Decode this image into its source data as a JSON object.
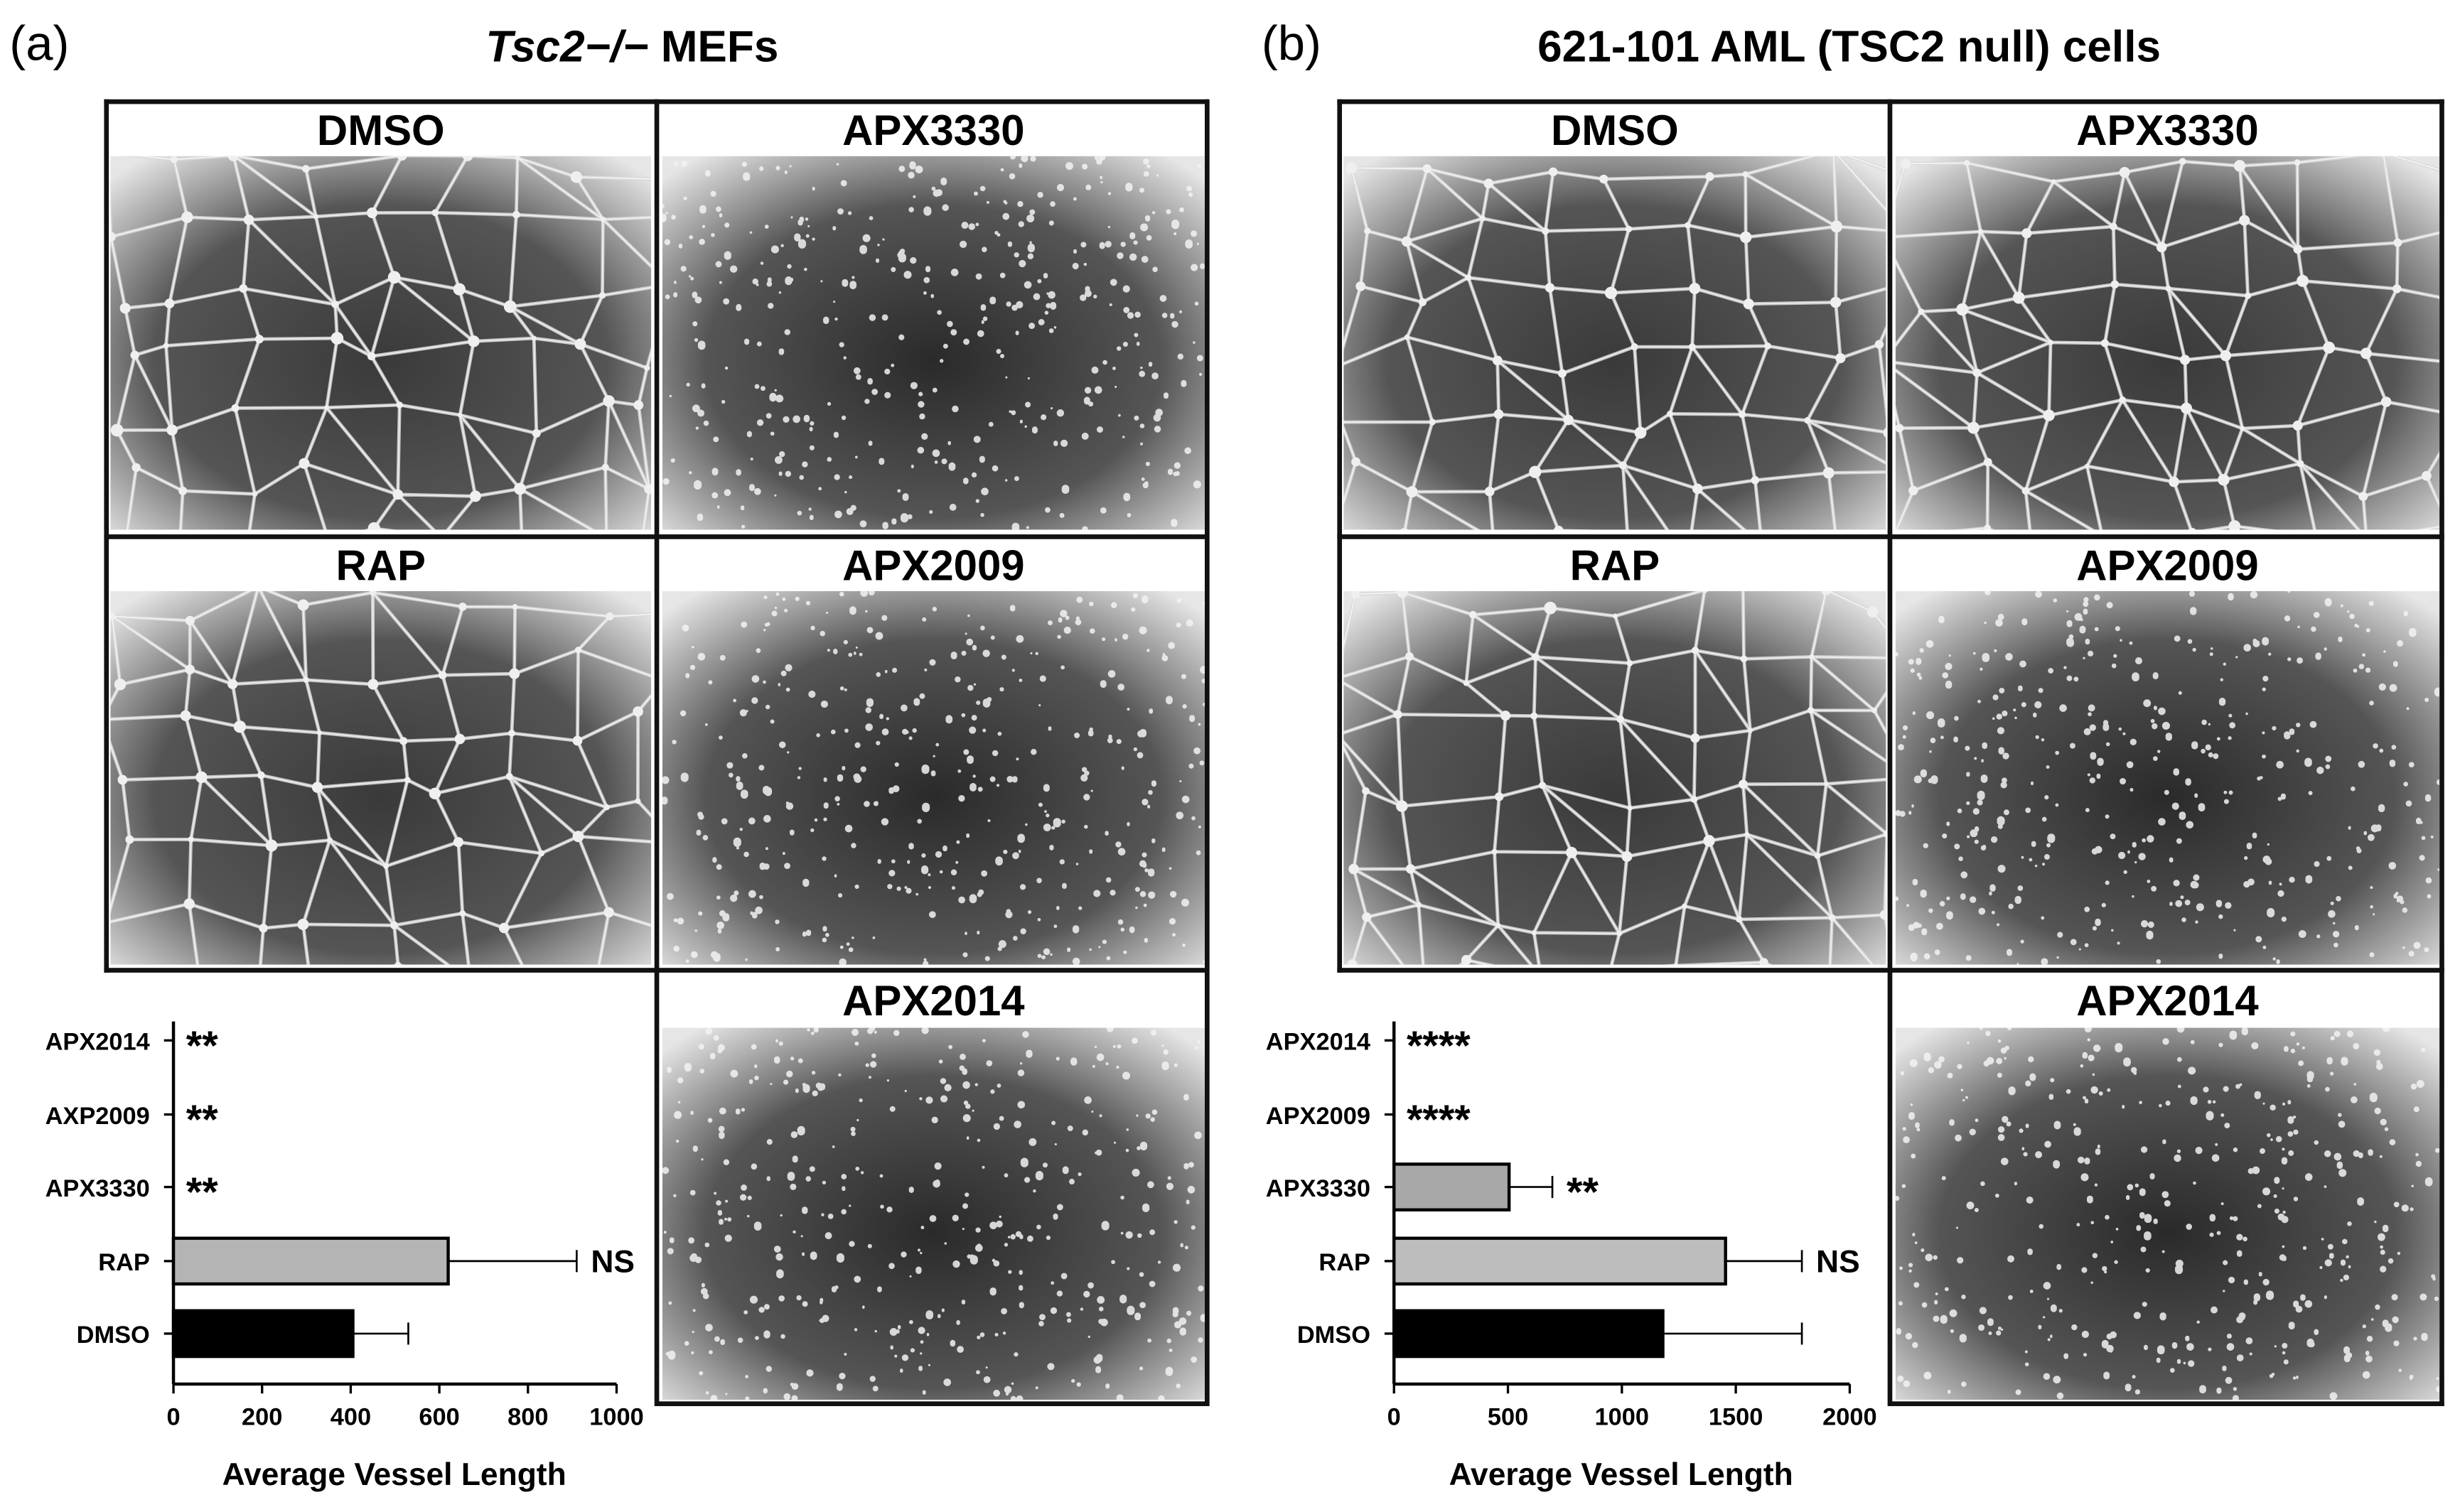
{
  "panels": [
    {
      "label": "(a)",
      "title_italic": "Tsc2−/−",
      "title_rest": " MEFs",
      "images": [
        {
          "label": "DMSO",
          "pattern": "network"
        },
        {
          "label": "APX3330",
          "pattern": "dots"
        },
        {
          "label": "RAP",
          "pattern": "network"
        },
        {
          "label": "APX2009",
          "pattern": "dots"
        },
        {
          "label": "APX2014",
          "pattern": "dots"
        }
      ]
    },
    {
      "label": "(b)",
      "title": "621-101 AML (TSC2 null) cells",
      "images": [
        {
          "label": "DMSO",
          "pattern": "network"
        },
        {
          "label": "APX3330",
          "pattern": "network"
        },
        {
          "label": "RAP",
          "pattern": "network"
        },
        {
          "label": "APX2009",
          "pattern": "dots"
        },
        {
          "label": "APX2014",
          "pattern": "dots"
        }
      ]
    }
  ],
  "chart_data": [
    {
      "type": "bar",
      "orientation": "horizontal",
      "categories": [
        "APX2014",
        "AXP2009",
        "APX3330",
        "RAP",
        "DMSO"
      ],
      "values": [
        0,
        0,
        0,
        620,
        405
      ],
      "errors": [
        0,
        0,
        0,
        290,
        125
      ],
      "significance": [
        "**",
        "**",
        "**",
        "NS",
        ""
      ],
      "colors": [
        "#ffffff",
        "#ffffff",
        "#ffffff",
        "#b4b4b4",
        "#000000"
      ],
      "xlabel": "Average Vessel Length",
      "xlim": [
        0,
        1000
      ],
      "xticks": [
        "0",
        "200",
        "400",
        "600",
        "800",
        "1000"
      ]
    },
    {
      "type": "bar",
      "orientation": "horizontal",
      "categories": [
        "APX2014",
        "APX2009",
        "APX3330",
        "RAP",
        "DMSO"
      ],
      "values": [
        0,
        0,
        505,
        1455,
        1180
      ],
      "errors": [
        0,
        0,
        190,
        335,
        610
      ],
      "significance": [
        "****",
        "****",
        "**",
        "NS",
        ""
      ],
      "colors": [
        "#ffffff",
        "#ffffff",
        "#a8a8a8",
        "#bdbdbd",
        "#000000"
      ],
      "xlabel": "Average Vessel Length",
      "xlim": [
        0,
        2000
      ],
      "xticks": [
        "0",
        "500",
        "1000",
        "1500",
        "2000"
      ]
    }
  ]
}
